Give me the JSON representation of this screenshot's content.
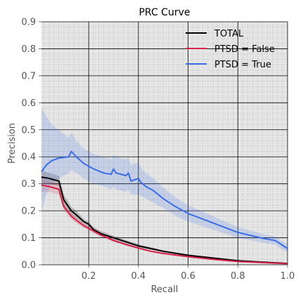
{
  "chart_data": {
    "type": "line",
    "title": "PRC Curve",
    "xlabel": "Recall",
    "ylabel": "Precision",
    "xlim": [
      0.01,
      1.0
    ],
    "ylim": [
      0.0,
      0.9
    ],
    "xticks": [
      0.2,
      0.4,
      0.6,
      0.8,
      1.0
    ],
    "xtick_labels": [
      "0.2",
      "0.4",
      "0.6",
      "0.8",
      "1.0"
    ],
    "yticks": [
      0.0,
      0.1,
      0.2,
      0.3,
      0.4,
      0.5,
      0.6,
      0.7,
      0.8,
      0.9
    ],
    "ytick_labels": [
      "0.0",
      "0.1",
      "0.2",
      "0.3",
      "0.4",
      "0.5",
      "0.6",
      "0.7",
      "0.8",
      "0.9"
    ],
    "grid": true,
    "legend_position": "top-right",
    "series": [
      {
        "name": "TOTAL",
        "color": "#000000",
        "x": [
          0.01,
          0.04,
          0.08,
          0.1,
          0.13,
          0.15,
          0.18,
          0.2,
          0.22,
          0.25,
          0.3,
          0.35,
          0.4,
          0.45,
          0.5,
          0.6,
          0.7,
          0.8,
          0.9,
          1.0
        ],
        "y": [
          0.325,
          0.32,
          0.31,
          0.24,
          0.2,
          0.185,
          0.16,
          0.15,
          0.13,
          0.115,
          0.1,
          0.085,
          0.07,
          0.06,
          0.05,
          0.035,
          0.025,
          0.015,
          0.01,
          0.005
        ],
        "band_lower": [
          0.3,
          0.3,
          0.29,
          0.22,
          0.185,
          0.17,
          0.15,
          0.14,
          0.12,
          0.105,
          0.092,
          0.078,
          0.064,
          0.055,
          0.046,
          0.032,
          0.022,
          0.013,
          0.008,
          0.004
        ],
        "band_upper": [
          0.35,
          0.34,
          0.33,
          0.26,
          0.215,
          0.2,
          0.17,
          0.16,
          0.14,
          0.125,
          0.108,
          0.092,
          0.076,
          0.065,
          0.054,
          0.038,
          0.028,
          0.017,
          0.012,
          0.006
        ]
      },
      {
        "name": "PTSD = False",
        "color": "#d62045",
        "x": [
          0.01,
          0.04,
          0.08,
          0.1,
          0.13,
          0.15,
          0.18,
          0.2,
          0.25,
          0.3,
          0.35,
          0.4,
          0.45,
          0.5,
          0.6,
          0.7,
          0.8,
          0.9,
          1.0
        ],
        "y": [
          0.295,
          0.29,
          0.28,
          0.215,
          0.18,
          0.165,
          0.145,
          0.135,
          0.11,
          0.09,
          0.075,
          0.062,
          0.05,
          0.042,
          0.03,
          0.02,
          0.012,
          0.008,
          0.004
        ],
        "band_lower": [
          0.27,
          0.27,
          0.26,
          0.2,
          0.168,
          0.155,
          0.137,
          0.127,
          0.104,
          0.085,
          0.071,
          0.058,
          0.047,
          0.039,
          0.028,
          0.018,
          0.011,
          0.007,
          0.003
        ],
        "band_upper": [
          0.32,
          0.31,
          0.3,
          0.23,
          0.192,
          0.175,
          0.153,
          0.143,
          0.116,
          0.095,
          0.079,
          0.066,
          0.053,
          0.045,
          0.032,
          0.022,
          0.013,
          0.009,
          0.005
        ]
      },
      {
        "name": "PTSD = True",
        "color": "#3a6ee8",
        "x": [
          0.01,
          0.03,
          0.05,
          0.08,
          0.12,
          0.13,
          0.15,
          0.18,
          0.22,
          0.26,
          0.29,
          0.3,
          0.31,
          0.35,
          0.36,
          0.37,
          0.4,
          0.41,
          0.43,
          0.46,
          0.5,
          0.55,
          0.6,
          0.7,
          0.8,
          0.9,
          0.95,
          1.0
        ],
        "y": [
          0.345,
          0.37,
          0.385,
          0.395,
          0.4,
          0.42,
          0.4,
          0.375,
          0.355,
          0.34,
          0.335,
          0.355,
          0.34,
          0.33,
          0.34,
          0.31,
          0.32,
          0.305,
          0.29,
          0.275,
          0.245,
          0.215,
          0.19,
          0.155,
          0.12,
          0.098,
          0.09,
          0.06
        ],
        "band_lower": [
          0.2,
          0.26,
          0.3,
          0.32,
          0.34,
          0.35,
          0.34,
          0.32,
          0.3,
          0.29,
          0.28,
          0.29,
          0.28,
          0.27,
          0.28,
          0.26,
          0.26,
          0.255,
          0.245,
          0.23,
          0.21,
          0.18,
          0.16,
          0.13,
          0.1,
          0.082,
          0.075,
          0.045
        ],
        "band_upper": [
          0.58,
          0.55,
          0.52,
          0.5,
          0.47,
          0.49,
          0.46,
          0.43,
          0.41,
          0.4,
          0.39,
          0.41,
          0.4,
          0.39,
          0.4,
          0.37,
          0.38,
          0.36,
          0.34,
          0.32,
          0.285,
          0.25,
          0.22,
          0.18,
          0.14,
          0.114,
          0.105,
          0.075
        ]
      }
    ]
  }
}
